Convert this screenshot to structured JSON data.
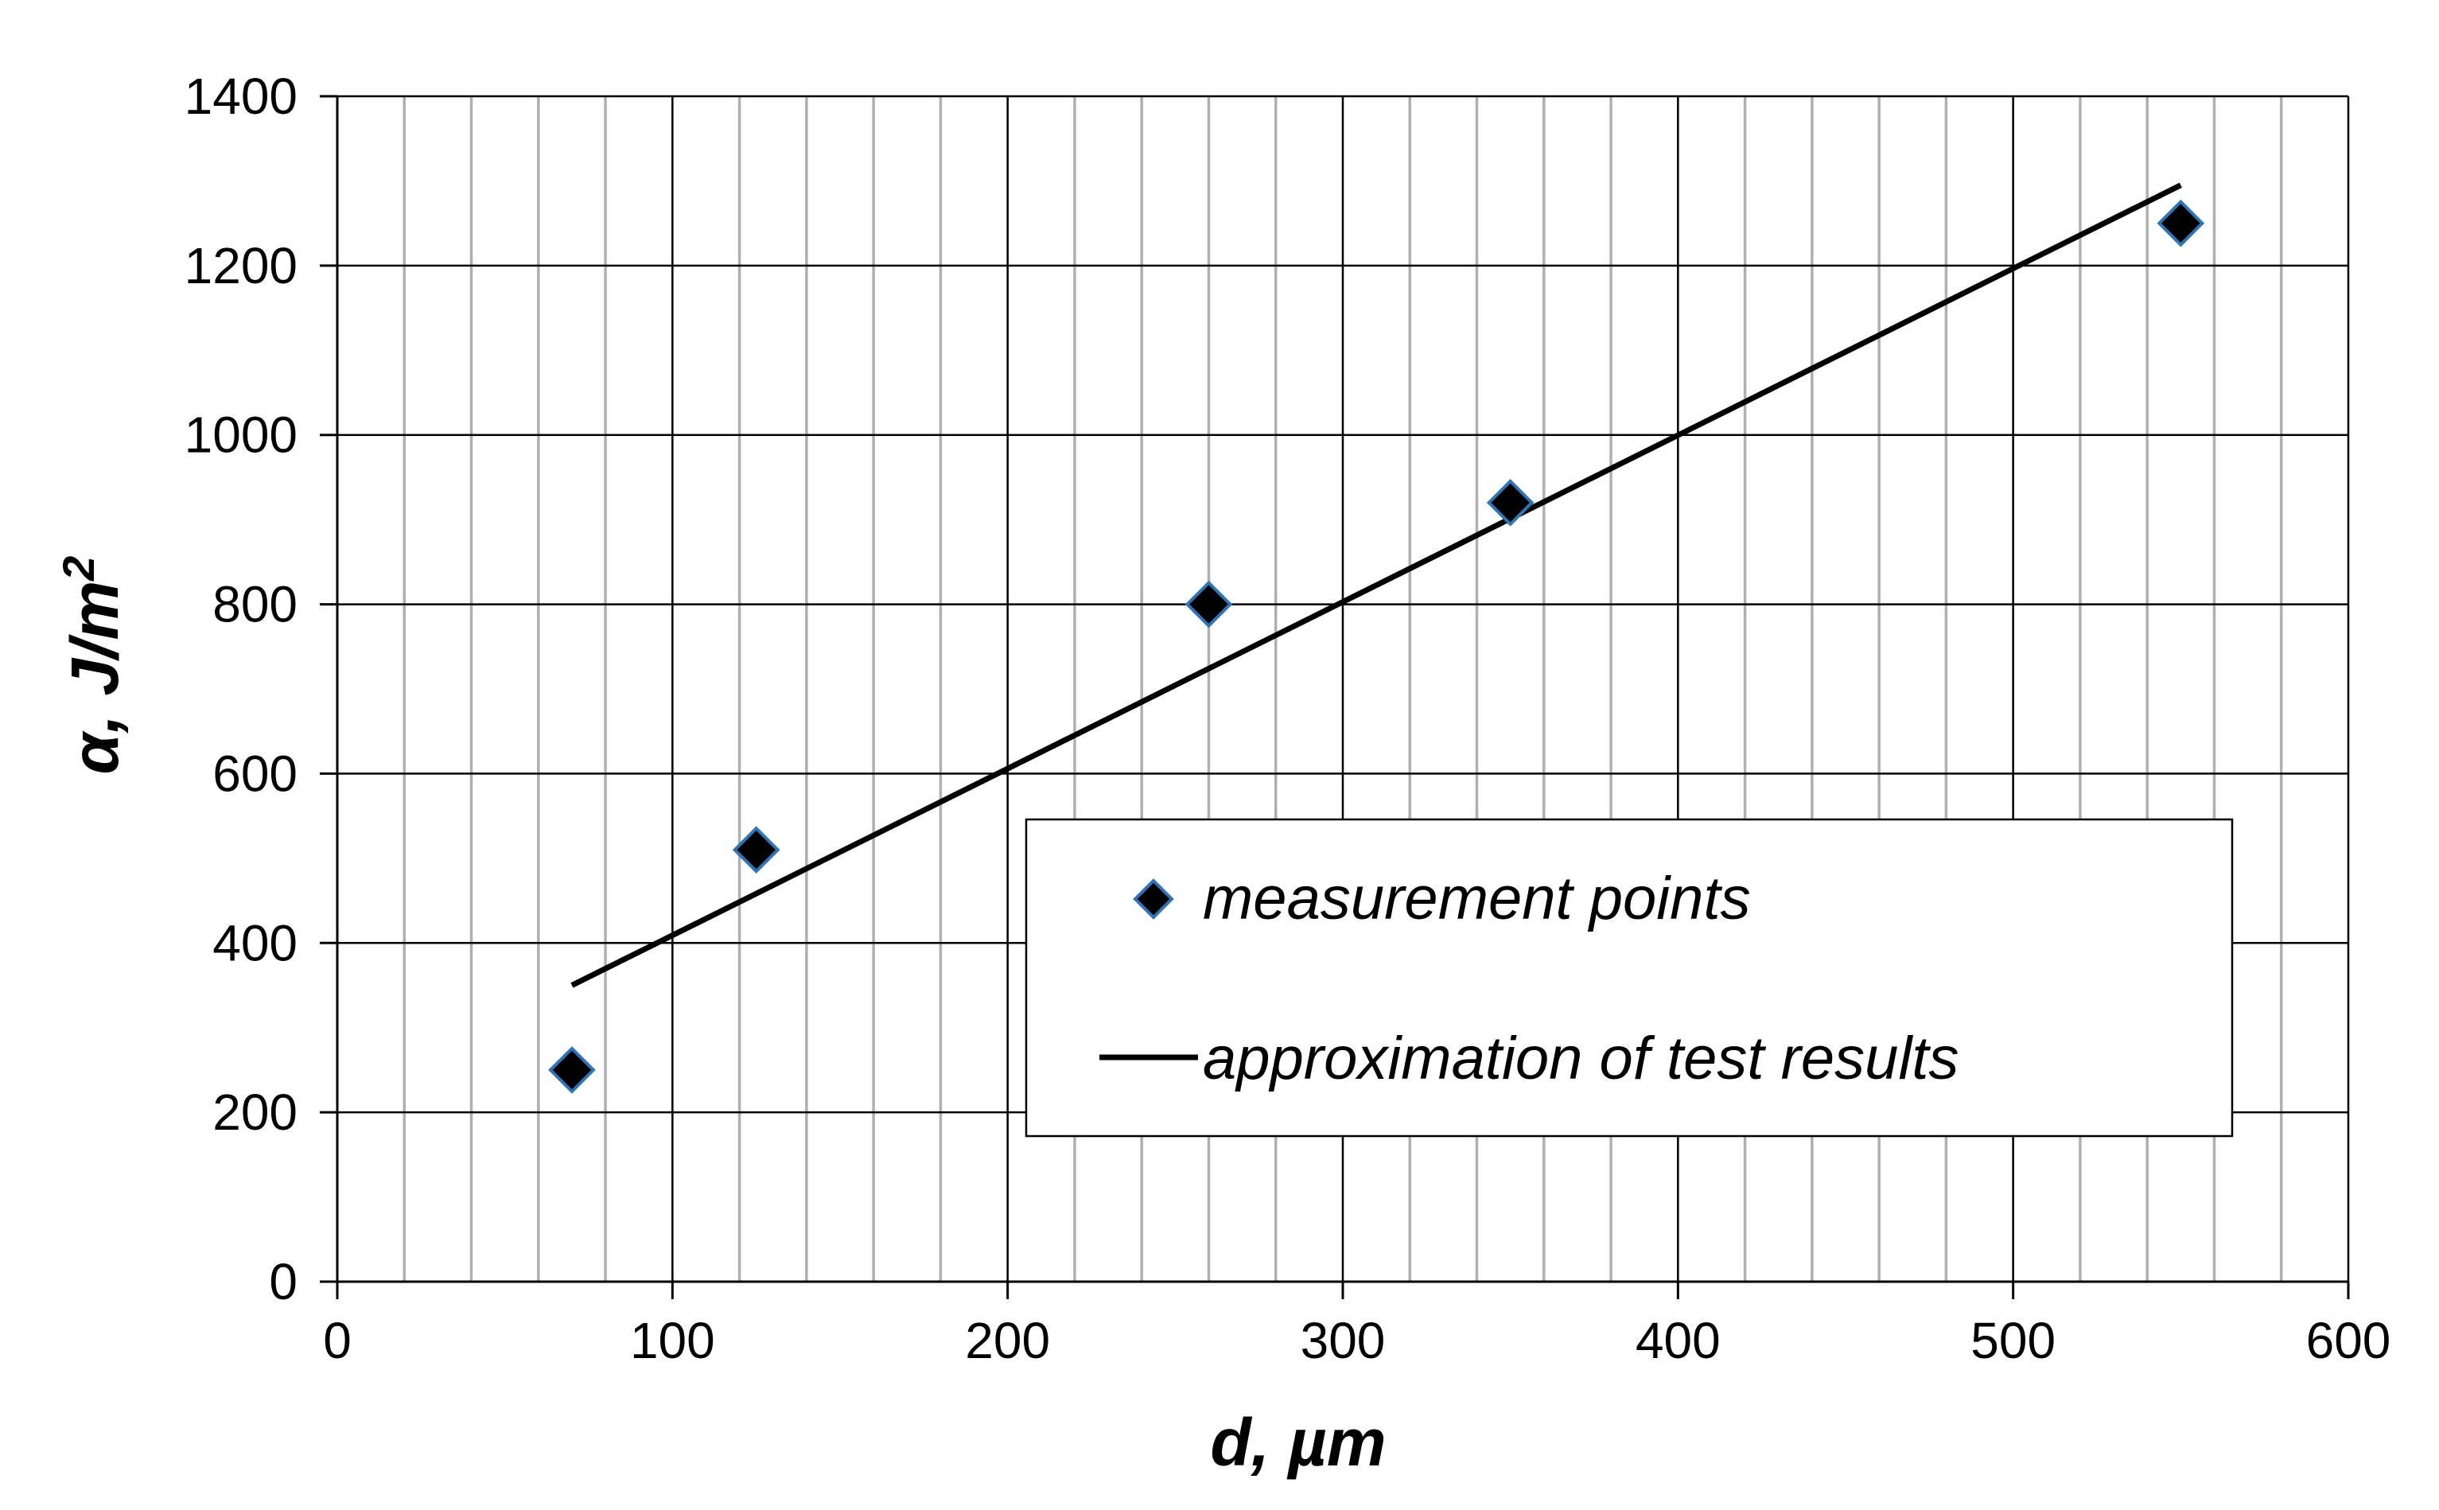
{
  "chart_data": {
    "type": "scatter",
    "title": "",
    "xlabel": "d, µm",
    "ylabel_prefix": "α, J/m",
    "ylabel_superscript": "2",
    "xlim": [
      0,
      600
    ],
    "ylim": [
      0,
      1400
    ],
    "x_major_step": 100,
    "x_minor_step": 20,
    "y_major_step": 200,
    "x_ticks": [
      "0",
      "100",
      "200",
      "300",
      "400",
      "500",
      "600"
    ],
    "y_ticks": [
      "0",
      "200",
      "400",
      "600",
      "800",
      "1000",
      "1200",
      "1400"
    ],
    "grid": true,
    "legend_position": "inside-bottom-right",
    "series": [
      {
        "name": "measurement points",
        "kind": "scatter",
        "marker": "diamond",
        "color": "#000000",
        "edge_color": "#2E75B6",
        "points": [
          {
            "x": 70,
            "y": 250
          },
          {
            "x": 125,
            "y": 510
          },
          {
            "x": 260,
            "y": 800
          },
          {
            "x": 350,
            "y": 920
          },
          {
            "x": 550,
            "y": 1250
          }
        ]
      },
      {
        "name": "approximation of test results",
        "kind": "line",
        "color": "#000000",
        "points": [
          {
            "x": 70,
            "y": 350
          },
          {
            "x": 550,
            "y": 1295
          }
        ]
      }
    ]
  }
}
